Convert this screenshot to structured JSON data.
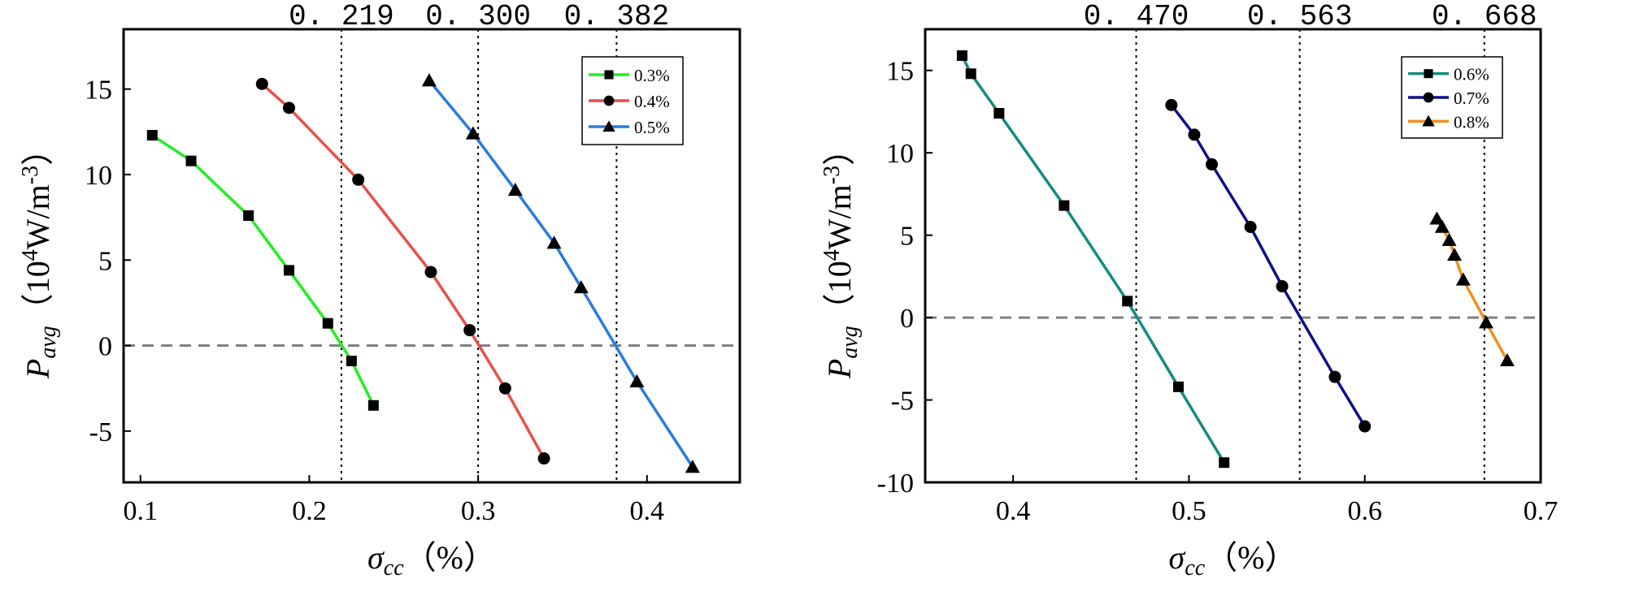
{
  "chart_data": [
    {
      "type": "line",
      "xlabel": "σcc（%）",
      "xlabel_main": "σ",
      "xlabel_sub": "cc",
      "xlabel_unit": "（%）",
      "ylabel": "Pavg（10⁴W/m⁻³）",
      "ylabel_main": "P",
      "ylabel_sub": "avg",
      "ylabel_unit_open": "（10",
      "ylabel_unit_exp": "4",
      "ylabel_unit_mid": "W/m",
      "ylabel_unit_exp2": "-3",
      "ylabel_unit_close": "）",
      "xlim": [
        0.09,
        0.455
      ],
      "ylim": [
        -8,
        18.5
      ],
      "xticks": [
        0.1,
        0.2,
        0.3,
        0.4
      ],
      "xtick_labels": [
        "0.1",
        "0.2",
        "0.3",
        "0.4"
      ],
      "yticks": [
        -5,
        0,
        5,
        10,
        15
      ],
      "ytick_labels": [
        "-5",
        "0",
        "5",
        "10",
        "15"
      ],
      "zero_line": 0,
      "critical_values": [
        0.219,
        0.3,
        0.382
      ],
      "critical_labels": [
        "0. 219",
        "0. 300",
        "0. 382"
      ],
      "legend_position": "top-right",
      "series": [
        {
          "name": "0.3%",
          "color": "#22ee22",
          "marker": "square",
          "x": [
            0.107,
            0.13,
            0.164,
            0.188,
            0.211,
            0.225,
            0.238
          ],
          "y": [
            12.3,
            10.8,
            7.6,
            4.4,
            1.3,
            -0.9,
            -3.5
          ]
        },
        {
          "name": "0.4%",
          "color": "#e8504a",
          "marker": "circle",
          "x": [
            0.172,
            0.188,
            0.229,
            0.272,
            0.295,
            0.316,
            0.339
          ],
          "y": [
            15.3,
            13.9,
            9.7,
            4.3,
            0.9,
            -2.5,
            -6.6
          ]
        },
        {
          "name": "0.5%",
          "color": "#2a7bdf",
          "marker": "triangle",
          "x": [
            0.271,
            0.297,
            0.322,
            0.345,
            0.361,
            0.394,
            0.427
          ],
          "y": [
            15.5,
            12.4,
            9.1,
            6.0,
            3.4,
            -2.1,
            -7.1
          ]
        }
      ]
    },
    {
      "type": "line",
      "xlabel": "σcc（%）",
      "xlabel_main": "σ",
      "xlabel_sub": "cc",
      "xlabel_unit": "（%）",
      "ylabel": "Pavg（10⁴W/m⁻³）",
      "ylabel_main": "P",
      "ylabel_sub": "avg",
      "ylabel_unit_open": "（10",
      "ylabel_unit_exp": "4",
      "ylabel_unit_mid": "W/m",
      "ylabel_unit_exp2": "-3",
      "ylabel_unit_close": "）",
      "xlim": [
        0.35,
        0.7
      ],
      "ylim": [
        -10,
        17.5
      ],
      "xticks": [
        0.4,
        0.5,
        0.6,
        0.7
      ],
      "xtick_labels": [
        "0.4",
        "0.5",
        "0.6",
        "0.7"
      ],
      "yticks": [
        -10,
        -5,
        0,
        5,
        10,
        15
      ],
      "ytick_labels": [
        "-10",
        "-5",
        "0",
        "5",
        "10",
        "15"
      ],
      "zero_line": 0,
      "critical_values": [
        0.47,
        0.563,
        0.668
      ],
      "critical_labels": [
        "0. 470",
        "0. 563",
        "0. 668"
      ],
      "legend_position": "top-right",
      "series": [
        {
          "name": "0.6%",
          "color": "#168a84",
          "marker": "square",
          "x": [
            0.371,
            0.376,
            0.392,
            0.429,
            0.465,
            0.494,
            0.52
          ],
          "y": [
            15.9,
            14.8,
            12.4,
            6.8,
            1.0,
            -4.2,
            -8.8
          ]
        },
        {
          "name": "0.7%",
          "color": "#10108c",
          "marker": "circle",
          "x": [
            0.49,
            0.503,
            0.513,
            0.535,
            0.553,
            0.583,
            0.6
          ],
          "y": [
            12.9,
            11.1,
            9.3,
            5.5,
            1.9,
            -3.6,
            -6.6
          ]
        },
        {
          "name": "0.8%",
          "color": "#f0901e",
          "marker": "triangle",
          "x": [
            0.641,
            0.644,
            0.648,
            0.651,
            0.656,
            0.669,
            0.681
          ],
          "y": [
            6.0,
            5.5,
            4.7,
            3.8,
            2.3,
            -0.3,
            -2.6
          ]
        }
      ]
    }
  ]
}
